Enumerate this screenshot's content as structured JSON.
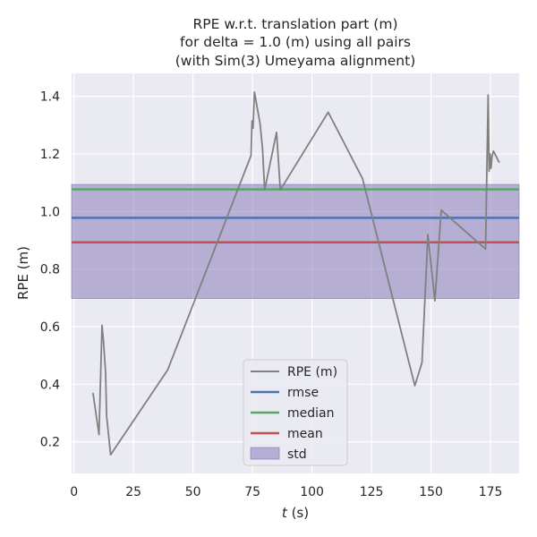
{
  "chart_data": {
    "type": "line",
    "title_lines": [
      "RPE w.r.t. translation part (m)",
      "for delta = 1.0 (m) using all pairs",
      "(with Sim(3) Umeyama alignment)"
    ],
    "xlabel_italic": "t",
    "xlabel_unit": " (s)",
    "ylabel": "RPE (m)",
    "xlim": [
      -1,
      187
    ],
    "ylim": [
      0.09,
      1.48
    ],
    "x_ticks": [
      0,
      25,
      50,
      75,
      100,
      125,
      150,
      175
    ],
    "y_ticks": [
      0.2,
      0.4,
      0.6,
      0.8,
      1.0,
      1.2,
      1.4
    ],
    "y_tick_labels": [
      "0.2",
      "0.4",
      "0.6",
      "0.8",
      "1.0",
      "1.2",
      "1.4"
    ],
    "grid": true,
    "legend_position": "lower-center",
    "series": [
      {
        "name": "RPE (m)",
        "color": "#808080",
        "x": [
          8,
          10.5,
          11.8,
          12.4,
          13.3,
          13.7,
          15.4,
          39.4,
          74.4,
          74.8,
          75.2,
          75.8,
          78.2,
          79.2,
          80.1,
          85.1,
          86.7,
          106.8,
          121.2,
          143.2,
          146.2,
          148.7,
          151.6,
          154.3,
          172.9,
          174.0,
          174.4,
          174.8,
          175.2,
          175.6,
          176.2,
          178.7
        ],
        "y": [
          0.37,
          0.225,
          0.605,
          0.55,
          0.44,
          0.29,
          0.155,
          0.45,
          1.195,
          1.315,
          1.29,
          1.415,
          1.305,
          1.22,
          1.075,
          1.275,
          1.075,
          1.345,
          1.115,
          0.395,
          0.475,
          0.92,
          0.69,
          1.005,
          0.87,
          1.405,
          1.14,
          1.2,
          1.15,
          1.19,
          1.21,
          1.17
        ]
      }
    ],
    "hlines": [
      {
        "name": "rmse",
        "value": 0.978,
        "color": "#4c72b0"
      },
      {
        "name": "median",
        "value": 1.077,
        "color": "#55a868"
      },
      {
        "name": "mean",
        "value": 0.893,
        "color": "#c44e52"
      }
    ],
    "std_band": {
      "name": "std",
      "lower": 0.698,
      "upper": 1.094,
      "color": "#8172b3"
    }
  }
}
